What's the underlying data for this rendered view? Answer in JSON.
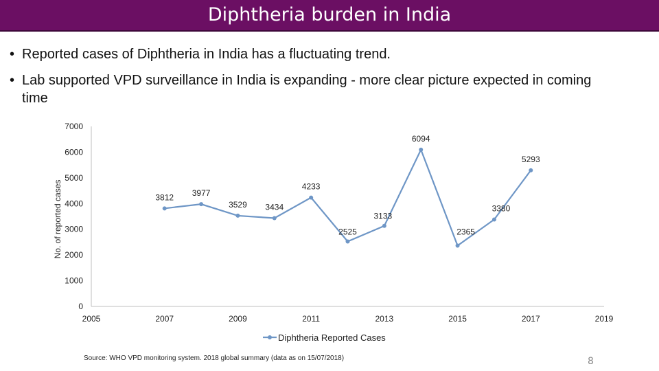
{
  "slide": {
    "title": "Diphtheria burden in India",
    "bullets": [
      "Reported cases of Diphtheria in India has a fluctuating trend.",
      "Lab supported VPD surveillance in India is expanding - more clear picture expected in coming",
      "time"
    ],
    "source": "Source: WHO VPD monitoring system. 2018 global summary (data as on 15/07/2018)",
    "page_number": "8",
    "bullet_symbol": "•"
  },
  "colors": {
    "title_bar": "#6b0f63",
    "series_line": "#6e96c6",
    "axis": "#bfbfbf"
  },
  "chart_data": {
    "type": "line",
    "title": "",
    "xlabel": "",
    "ylabel": "No. of reported cases",
    "xlim": [
      2005,
      2019
    ],
    "ylim": [
      0,
      7000
    ],
    "x_ticks": [
      "2005",
      "2007",
      "2009",
      "2011",
      "2013",
      "2015",
      "2017",
      "2019"
    ],
    "y_ticks": [
      "0",
      "1000",
      "2000",
      "3000",
      "4000",
      "5000",
      "6000",
      "7000"
    ],
    "legend": "bottom",
    "series": [
      {
        "name": "Diphtheria Reported Cases",
        "x": [
          2007,
          2008,
          2009,
          2010,
          2011,
          2012,
          2013,
          2014,
          2015,
          2016,
          2017
        ],
        "values": [
          3812,
          3977,
          3529,
          3434,
          4233,
          2525,
          3133,
          6094,
          2365,
          3380,
          5293
        ],
        "labels": [
          "3812",
          "3977",
          "3529",
          "3434",
          "4233",
          "2525",
          "3133",
          "6094",
          "2365",
          "3380",
          "5293"
        ]
      }
    ]
  }
}
